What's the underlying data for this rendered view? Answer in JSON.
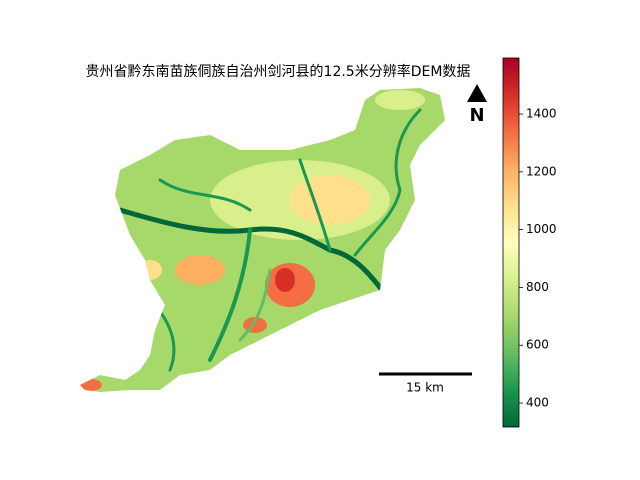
{
  "title": "贵州省黔东南苗族侗族自治州剑河县的12.5米分辨率DEM数据",
  "north_label": "N",
  "scale_bar": {
    "label": "15 km"
  },
  "colorbar": {
    "lim": [
      317,
      1594
    ],
    "ticks": [
      400,
      600,
      800,
      1000,
      1200,
      1400
    ],
    "colors": [
      "#006837",
      "#1a9850",
      "#66bd63",
      "#a6d96a",
      "#d9ef8b",
      "#ffffbf",
      "#fee08b",
      "#fdae61",
      "#f46d43",
      "#d73027",
      "#a50026"
    ]
  }
}
